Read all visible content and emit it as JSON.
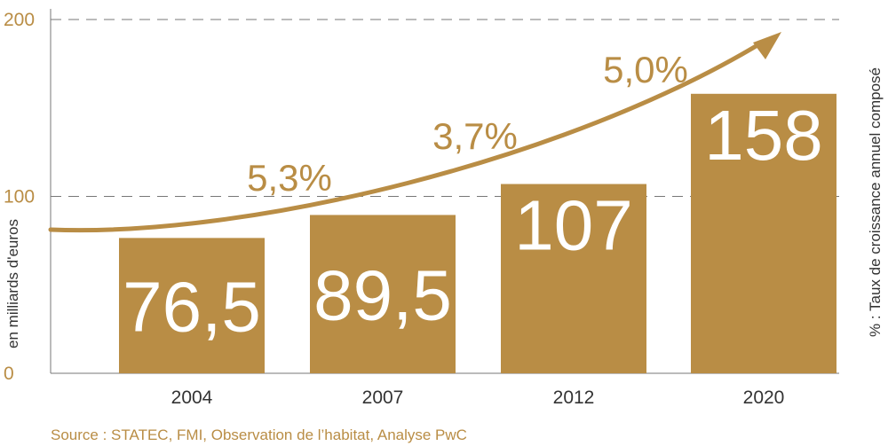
{
  "chart_data": {
    "type": "bar",
    "categories": [
      "2004",
      "2007",
      "2012",
      "2020"
    ],
    "values": [
      76.5,
      89.5,
      107,
      158
    ],
    "value_labels": [
      "76,5",
      "89,5",
      "107",
      "158"
    ],
    "ylabel": "en milliards d'euros",
    "y2label": "% : Taux de croissance annuel composé",
    "ylim": [
      0,
      200
    ],
    "yticks": [
      "0",
      "100",
      "200"
    ],
    "ytick_values": [
      0,
      100,
      200
    ],
    "grid": "dashed lines at 100 and 200",
    "growth_rates": [
      {
        "label": "5,3%",
        "between": [
          "2004",
          "2007"
        ]
      },
      {
        "label": "3,7%",
        "between": [
          "2007",
          "2012"
        ]
      },
      {
        "label": "5,0%",
        "between": [
          "2012",
          "2020"
        ]
      }
    ],
    "bar_color": "#b98d45",
    "text_color": "#b98d45",
    "label_color": "#ffffff"
  },
  "source": "Source : STATEC, FMI, Observation de l’habitat, Analyse PwC"
}
